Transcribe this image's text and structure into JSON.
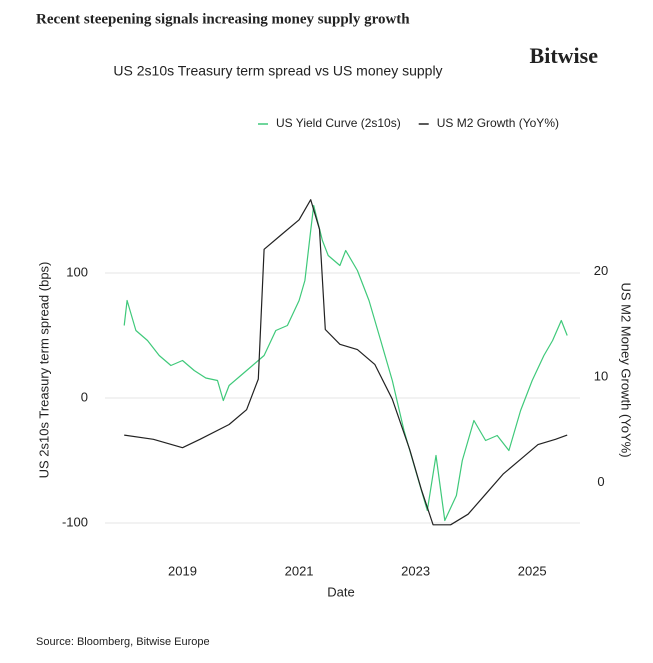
{
  "page_title": "Recent steepening signals increasing money supply growth",
  "brand": "Bitwise",
  "source": "Source: Bloomberg, Bitwise Europe",
  "chart_data": {
    "type": "line",
    "title": "US 2s10s Treasury term spread vs US money supply",
    "x_label": "Date",
    "y_label": "US 2s10s Treasury term spread (bps)",
    "y2_label": "US M2 Money Growth (YoY%)",
    "xlim": [
      2017.67,
      2025.82
    ],
    "xticks": [
      2019,
      2021,
      2023,
      2025
    ],
    "ylim": [
      -120,
      200
    ],
    "yticks": [
      -100,
      0,
      100
    ],
    "y2lim": [
      -6.2,
      31.7
    ],
    "y2ticks": [
      0,
      10,
      20
    ],
    "grid": true,
    "legend": "top",
    "series": [
      {
        "name": "US Yield Curve (2s10s)",
        "color": "#3fc97a",
        "x": [
          2018.0,
          2018.05,
          2018.2,
          2018.4,
          2018.6,
          2018.8,
          2019.0,
          2019.2,
          2019.4,
          2019.6,
          2019.7,
          2019.8,
          2020.0,
          2020.2,
          2020.4,
          2020.6,
          2020.8,
          2021.0,
          2021.1,
          2021.2,
          2021.25,
          2021.4,
          2021.5,
          2021.7,
          2021.8,
          2022.0,
          2022.2,
          2022.4,
          2022.6,
          2022.8,
          2023.0,
          2023.2,
          2023.35,
          2023.5,
          2023.7,
          2023.8,
          2024.0,
          2024.2,
          2024.4,
          2024.6,
          2024.8,
          2025.0,
          2025.2,
          2025.35,
          2025.5,
          2025.6
        ],
        "values": [
          58,
          78,
          54,
          46,
          34,
          26,
          30,
          22,
          16,
          14,
          -2,
          10,
          18,
          26,
          34,
          54,
          58,
          78,
          94,
          134,
          154,
          126,
          114,
          106,
          118,
          102,
          78,
          46,
          14,
          -26,
          -58,
          -90,
          -46,
          -98,
          -78,
          -50,
          -18,
          -34,
          -30,
          -42,
          -10,
          14,
          34,
          46,
          62,
          50
        ]
      },
      {
        "name": "US M2 Growth (YoY%)",
        "color": "#222222",
        "axis": "y2",
        "x": [
          2018.0,
          2018.5,
          2019.0,
          2019.3,
          2019.8,
          2020.1,
          2020.3,
          2020.4,
          2020.7,
          2021.0,
          2021.2,
          2021.35,
          2021.45,
          2021.7,
          2022.0,
          2022.3,
          2022.6,
          2022.9,
          2023.1,
          2023.3,
          2023.6,
          2023.9,
          2024.2,
          2024.5,
          2024.8,
          2025.1,
          2025.4,
          2025.6
        ],
        "values": [
          4.5,
          4.1,
          3.3,
          4.1,
          5.5,
          6.9,
          9.8,
          22.1,
          23.5,
          24.9,
          26.8,
          24.0,
          14.5,
          13.1,
          12.6,
          11.2,
          7.9,
          3.1,
          -0.7,
          -4.0,
          -4.0,
          -3.0,
          -1.1,
          0.8,
          2.2,
          3.6,
          4.1,
          4.5
        ]
      }
    ]
  }
}
